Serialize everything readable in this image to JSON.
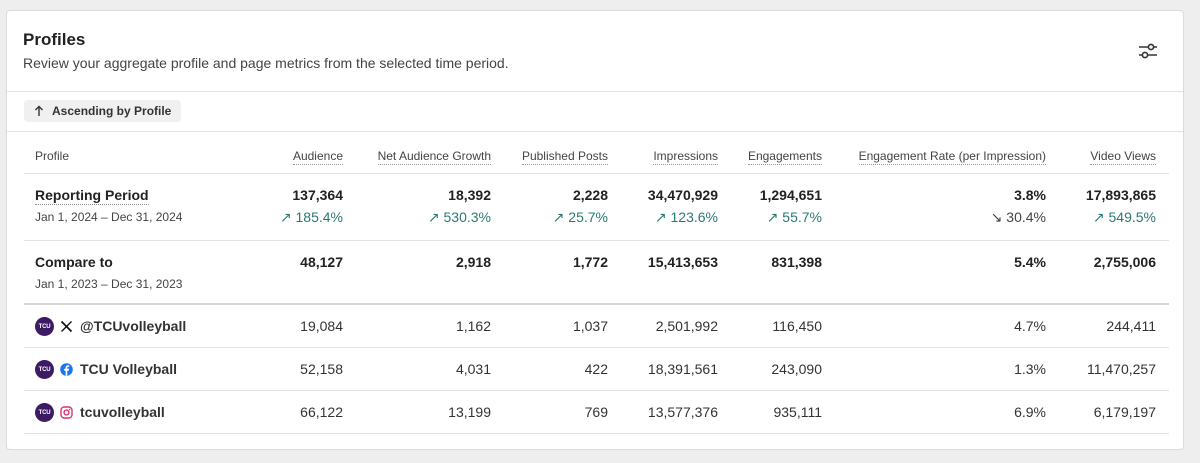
{
  "header": {
    "title": "Profiles",
    "subtitle": "Review your aggregate profile and page metrics from the selected time period."
  },
  "sort": {
    "label": "Ascending by Profile"
  },
  "table": {
    "columns": {
      "profile": "Profile",
      "audience": "Audience",
      "net_growth": "Net Audience Growth",
      "published": "Published Posts",
      "impressions": "Impressions",
      "engagements": "Engagements",
      "rate": "Engagement Rate (per Impression)",
      "video": "Video Views"
    },
    "reporting": {
      "label": "Reporting Period",
      "dates": "Jan 1, 2024 – Dec 31, 2024",
      "audience": "137,364",
      "audience_change": "185.4%",
      "net_growth": "18,392",
      "net_growth_change": "530.3%",
      "published": "2,228",
      "published_change": "25.7%",
      "impressions": "34,470,929",
      "impressions_change": "123.6%",
      "engagements": "1,294,651",
      "engagements_change": "55.7%",
      "rate": "3.8%",
      "rate_change": "30.4%",
      "video": "17,893,865",
      "video_change": "549.5%"
    },
    "compare": {
      "label": "Compare to",
      "dates": "Jan 1, 2023 – Dec 31, 2023",
      "audience": "48,127",
      "net_growth": "2,918",
      "published": "1,772",
      "impressions": "15,413,653",
      "engagements": "831,398",
      "rate": "5.4%",
      "video": "2,755,006"
    },
    "profiles": [
      {
        "avatar": "TCU",
        "network": "x-icon",
        "name": "@TCUvolleyball",
        "audience": "19,084",
        "net_growth": "1,162",
        "published": "1,037",
        "impressions": "2,501,992",
        "engagements": "116,450",
        "rate": "4.7%",
        "video": "244,411"
      },
      {
        "avatar": "TCU",
        "network": "facebook-icon",
        "name": "TCU Volleyball",
        "audience": "52,158",
        "net_growth": "4,031",
        "published": "422",
        "impressions": "18,391,561",
        "engagements": "243,090",
        "rate": "1.3%",
        "video": "11,470,257"
      },
      {
        "avatar": "TCU",
        "network": "instagram-icon",
        "name": "tcuvolleyball",
        "audience": "66,122",
        "net_growth": "13,199",
        "published": "769",
        "impressions": "13,577,376",
        "engagements": "935,111",
        "rate": "6.9%",
        "video": "6,179,197"
      }
    ]
  },
  "colors": {
    "positive": "#2a7a73",
    "avatar": "#3d1a63",
    "facebook": "#1877f2",
    "instagram": "#e1306c"
  }
}
